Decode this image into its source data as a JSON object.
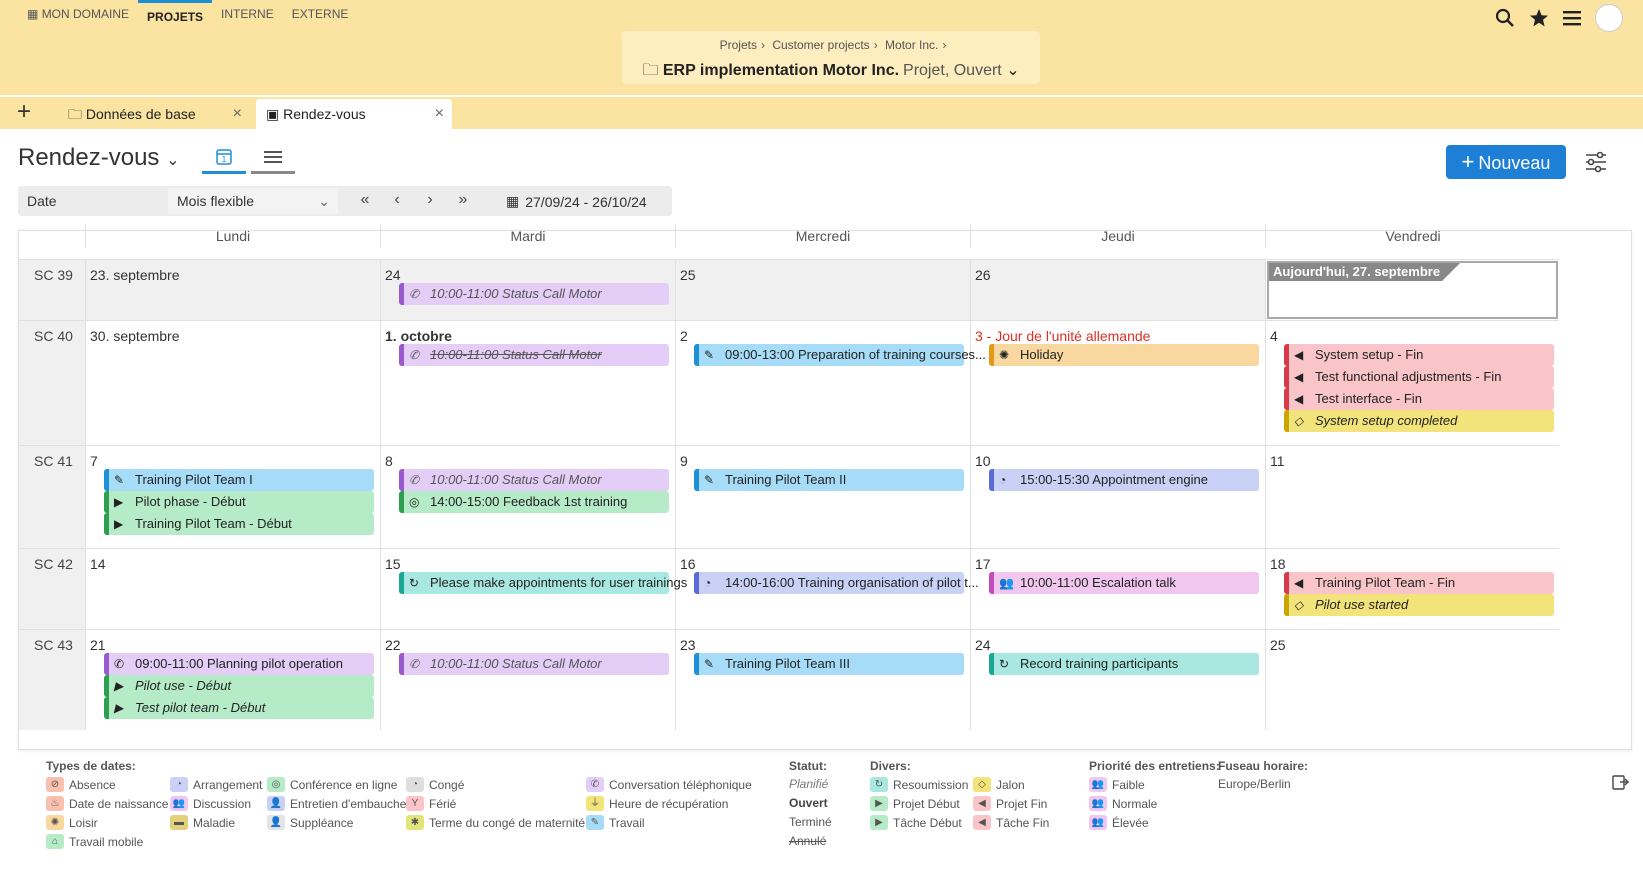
{
  "topnav": [
    "MON DOMAINE",
    "PROJETS",
    "INTERNE",
    "EXTERNE"
  ],
  "breadcrumb": [
    "Projets",
    "Customer projects",
    "Motor Inc."
  ],
  "project": {
    "name": "ERP implementation Motor Inc.",
    "status": "Projet, Ouvert"
  },
  "tabs": [
    "Données de base",
    "Rendez-vous"
  ],
  "header": {
    "title": "Rendez-vous",
    "new_label": "Nouveau"
  },
  "toolbar": {
    "date": "Date",
    "mode": "Mois flexible",
    "range": "27/09/24 - 26/10/24"
  },
  "days": [
    "Lundi",
    "Mardi",
    "Mercredi",
    "Jeudi",
    "Vendredi"
  ],
  "weeks": [
    {
      "label": "SC 39",
      "dates": [
        "23. septembre",
        "24",
        "25",
        "26",
        "Aujourd'hui, 27. septembre"
      ]
    },
    {
      "label": "SC 40",
      "dates": [
        "30. septembre",
        "1. octobre",
        "2",
        "3 - Jour de l'unité allemande",
        "4"
      ]
    },
    {
      "label": "SC 41",
      "dates": [
        "7",
        "8",
        "9",
        "10",
        "11"
      ]
    },
    {
      "label": "SC 42",
      "dates": [
        "14",
        "15",
        "16",
        "17",
        "18"
      ]
    },
    {
      "label": "SC 43",
      "dates": [
        "21",
        "22",
        "23",
        "24",
        "25"
      ]
    }
  ],
  "events": {
    "w0d1": [
      "10:00-11:00 Status Call Motor"
    ],
    "w1d1": [
      "10:00-11:00 Status Call Motor"
    ],
    "w1d2": [
      "09:00-13:00 Preparation of training courses..."
    ],
    "w1d3": [
      "Holiday"
    ],
    "w1d4": [
      "System setup - Fin",
      "Test functional adjustments - Fin",
      "Test interface - Fin",
      "System setup completed"
    ],
    "w2d0": [
      "Training Pilot Team I",
      "Pilot phase - Début",
      "Training Pilot Team - Début"
    ],
    "w2d1": [
      "10:00-11:00 Status Call Motor",
      "14:00-15:00 Feedback 1st training"
    ],
    "w2d2": [
      "Training Pilot Team II"
    ],
    "w2d3": [
      "15:00-15:30 Appointment engine"
    ],
    "w3d1": [
      "Please make appointments for user trainings"
    ],
    "w3d2": [
      "14:00-16:00 Training organisation of pilot t..."
    ],
    "w3d3": [
      "10:00-11:00 Escalation talk"
    ],
    "w3d4": [
      "Training Pilot Team - Fin",
      "Pilot use started"
    ],
    "w4d0": [
      "09:00-11:00 Planning pilot operation",
      "Pilot use - Début",
      "Test pilot team - Début"
    ],
    "w4d1": [
      "10:00-11:00 Status Call Motor"
    ],
    "w4d2": [
      "Training Pilot Team III"
    ],
    "w4d3": [
      "Record training participants"
    ]
  },
  "legend": {
    "types_title": "Types de dates:",
    "types": [
      "Absence",
      "Date de naissance",
      "Loisir",
      "Travail mobile",
      "Arrangement",
      "Discussion",
      "Maladie",
      "Conférence en ligne",
      "Entretien d'embauche",
      "Suppléance",
      "Congé",
      "Férié",
      "Terme du congé de maternité",
      "Conversation téléphonique",
      "Heure de récupération",
      "Travail"
    ],
    "status_title": "Statut:",
    "status": [
      "Planifié",
      "Ouvert",
      "Terminé",
      "Annulé"
    ],
    "misc_title": "Divers:",
    "misc": [
      "Resoumission",
      "Projet Début",
      "Tâche Début",
      "Jalon",
      "Projet Fin",
      "Tâche Fin"
    ],
    "prio_title": "Priorité des entretiens:",
    "prio": [
      "Faible",
      "Normale",
      "Élevée"
    ],
    "tz_title": "Fuseau horaire:",
    "tz": "Europe/Berlin"
  },
  "colors": {
    "accent": "#1e7fd6",
    "header_bg": "#fbe3a1"
  }
}
